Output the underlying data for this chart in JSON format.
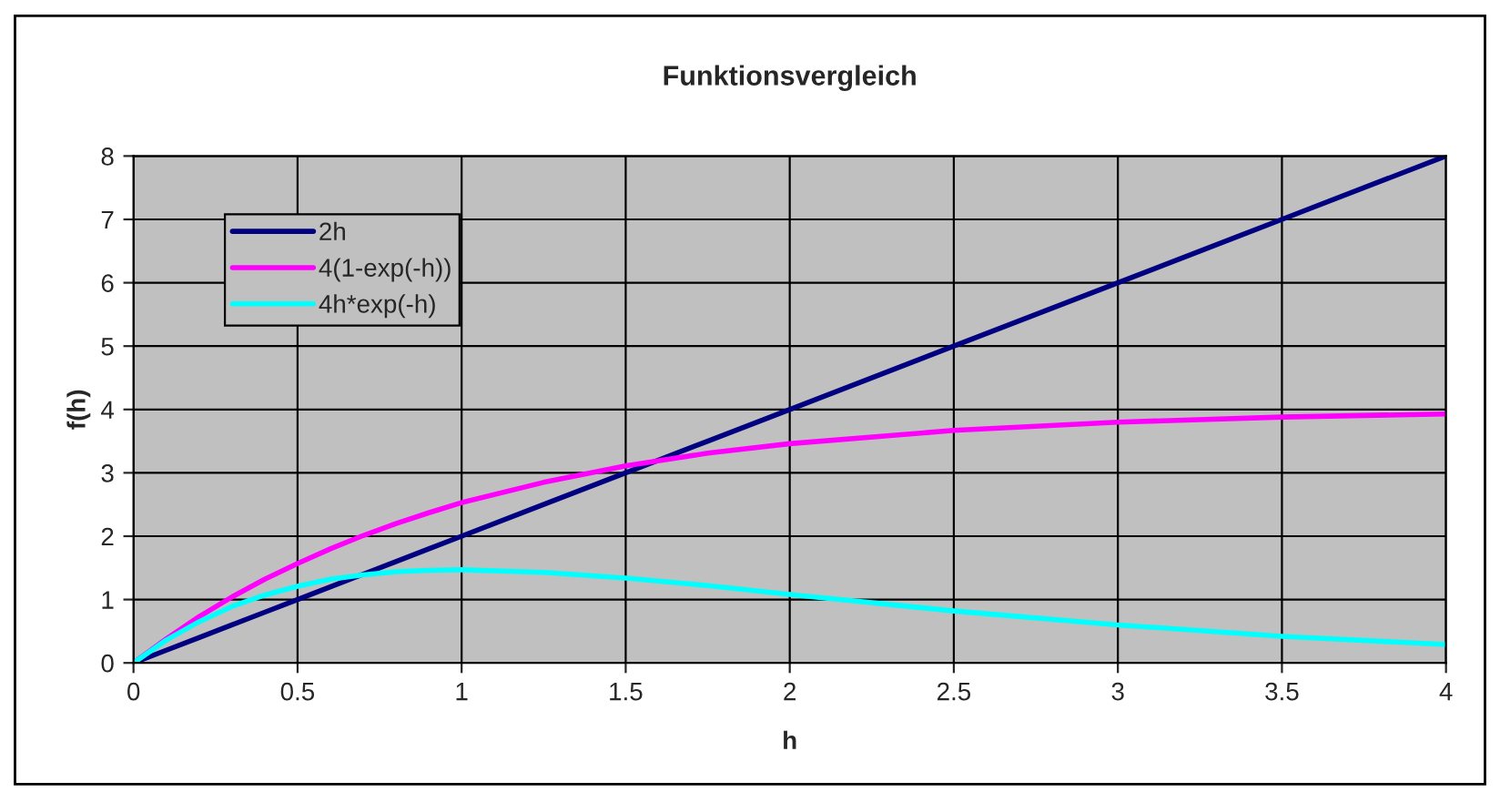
{
  "chart_data": {
    "type": "line",
    "title": "Funktionsvergleich",
    "xlabel": "h",
    "ylabel": "f(h)",
    "x": [
      0,
      0.1,
      0.2,
      0.3,
      0.4,
      0.5,
      0.6,
      0.7,
      0.8,
      0.9,
      1,
      1.25,
      1.5,
      1.75,
      2,
      2.5,
      3,
      3.5,
      4
    ],
    "series": [
      {
        "name": "2h",
        "color": "#000080",
        "values": [
          0,
          0.2,
          0.4,
          0.6,
          0.8,
          1,
          1.2,
          1.4,
          1.6,
          1.8,
          2,
          2.5,
          3,
          3.5,
          4,
          5,
          6,
          7,
          8
        ]
      },
      {
        "name": "4(1-exp(-h))",
        "color": "#ff00ff",
        "values": [
          0,
          0.38,
          0.73,
          1.04,
          1.32,
          1.57,
          1.8,
          2.01,
          2.2,
          2.37,
          2.53,
          2.85,
          3.11,
          3.31,
          3.46,
          3.67,
          3.8,
          3.88,
          3.93
        ]
      },
      {
        "name": "4h*exp(-h)",
        "color": "#00ffff",
        "values": [
          0,
          0.36,
          0.65,
          0.89,
          1.07,
          1.21,
          1.32,
          1.39,
          1.44,
          1.46,
          1.47,
          1.43,
          1.34,
          1.22,
          1.08,
          0.82,
          0.6,
          0.42,
          0.29
        ]
      }
    ],
    "xlim": [
      0,
      4
    ],
    "xticks": [
      0,
      0.5,
      1,
      1.5,
      2,
      2.5,
      3,
      3.5,
      4
    ],
    "ylim": [
      0,
      8
    ],
    "yticks": [
      0,
      1,
      2,
      3,
      4,
      5,
      6,
      7,
      8
    ],
    "grid": true,
    "legend": "top left",
    "marker": "none",
    "line_style": "solid"
  }
}
